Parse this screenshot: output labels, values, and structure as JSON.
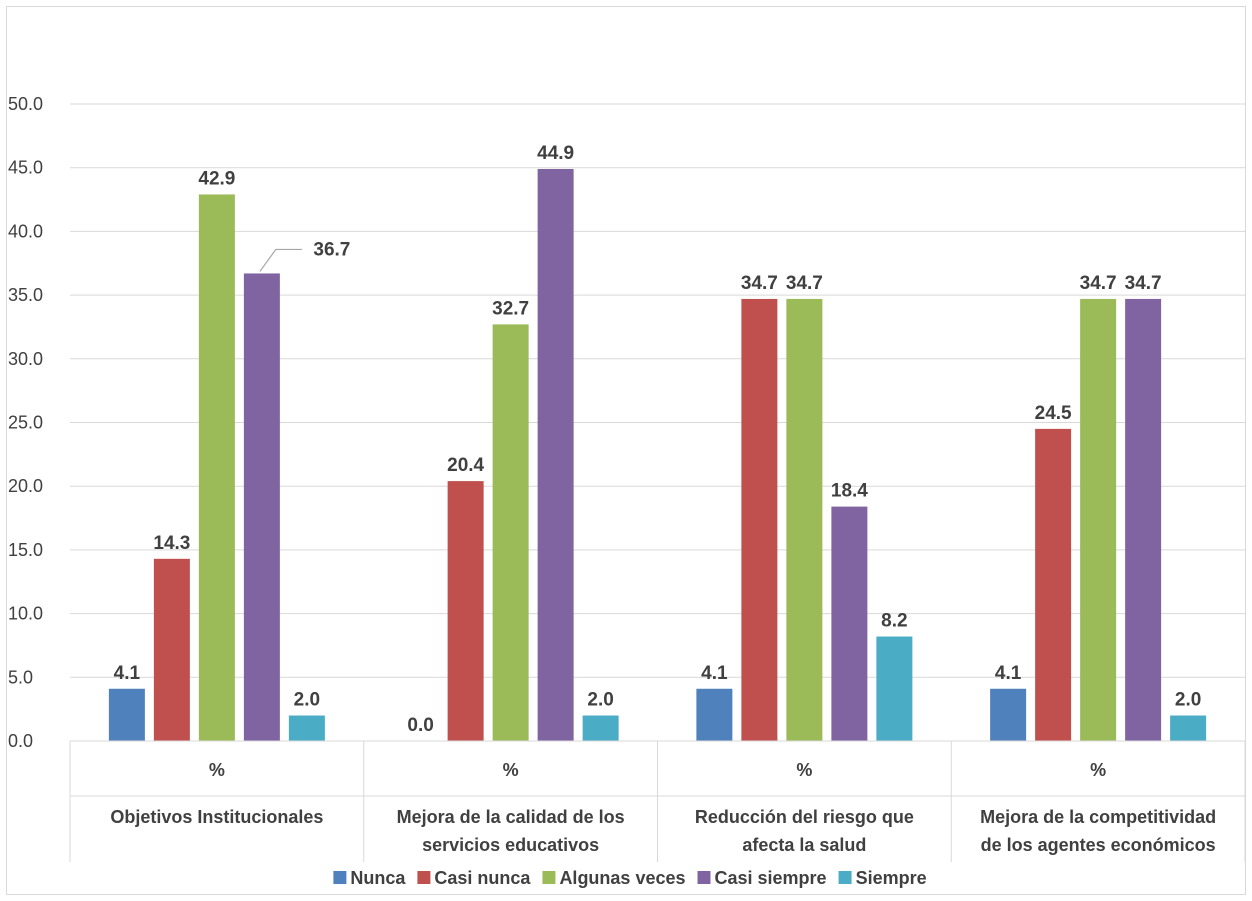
{
  "colors": {
    "Nunca": "#4f81bd",
    "Casi nunca": "#c0504d",
    "Algunas veces": "#9bbb59",
    "Casi siempre": "#8064a2",
    "Siempre": "#4bacc6"
  },
  "chart_data": {
    "type": "bar",
    "ylim": [
      0,
      50
    ],
    "y_ticks": [
      "0.0",
      "5.0",
      "10.0",
      "15.0",
      "20.0",
      "25.0",
      "30.0",
      "35.0",
      "40.0",
      "45.0",
      "50.0"
    ],
    "grid": true,
    "legend_position": "bottom",
    "categories": [
      {
        "sub": "%",
        "name_lines": [
          "Objetivos Institucionales"
        ]
      },
      {
        "sub": "%",
        "name_lines": [
          "Mejora de la calidad de los",
          "servicios educativos"
        ]
      },
      {
        "sub": "%",
        "name_lines": [
          "Reducción del riesgo que",
          "afecta la salud"
        ]
      },
      {
        "sub": "%",
        "name_lines": [
          "Mejora de la competitividad",
          "de los agentes económicos"
        ]
      }
    ],
    "series": [
      {
        "name": "Nunca",
        "values": [
          4.1,
          0.0,
          4.1,
          4.1
        ],
        "labels": [
          "4.1",
          "0.0",
          "4.1",
          "4.1"
        ]
      },
      {
        "name": "Casi nunca",
        "values": [
          14.3,
          20.4,
          34.7,
          24.5
        ],
        "labels": [
          "14.3",
          "20.4",
          "34.7",
          "24.5"
        ]
      },
      {
        "name": "Algunas veces",
        "values": [
          42.9,
          32.7,
          34.7,
          34.7
        ],
        "labels": [
          "42.9",
          "32.7",
          "34.7",
          "34.7"
        ]
      },
      {
        "name": "Casi siempre",
        "values": [
          36.7,
          44.9,
          18.4,
          34.7
        ],
        "labels": [
          "36.7",
          "44.9",
          "18.4",
          "34.7"
        ]
      },
      {
        "name": "Siempre",
        "values": [
          2.0,
          2.0,
          8.2,
          2.0
        ],
        "labels": [
          "2.0",
          "2.0",
          "8.2",
          "2.0"
        ]
      }
    ]
  }
}
